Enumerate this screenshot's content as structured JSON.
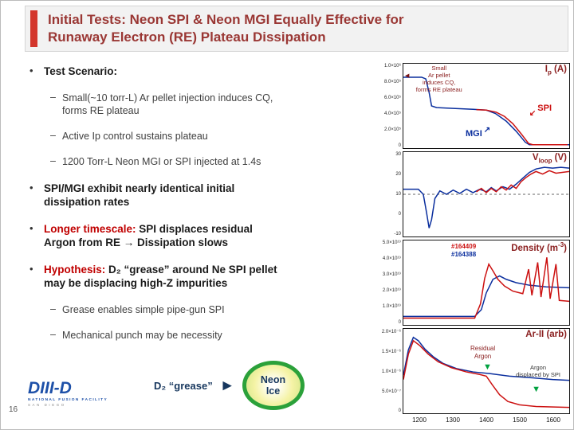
{
  "slide": {
    "title": "Initial Tests: Neon SPI & Neon MGI Equally Effective for\nRunaway Electron (RE) Plateau Dissipation",
    "page_number": "16"
  },
  "logo": {
    "wordmark": "DIII-D",
    "line1": "NATIONAL FUSION FACILITY",
    "line2": "SAN DIEGO"
  },
  "chars": {
    "bullet": "•",
    "dash": "–"
  },
  "icons": {
    "left_arrow": "◀",
    "down_left_arrow": "↙",
    "up_right_arrow": "↗",
    "down_arrow": "▼",
    "right_arrow": "►"
  },
  "colors": {
    "spi_red": "#cc1111",
    "mgi_blue": "#0b2f9e",
    "maroon": "#9a3734",
    "green": "#00a13f",
    "navy": "#17375e"
  },
  "bullets": {
    "test_scenario": "Test Scenario:",
    "sub_small_pellet": "Small(~10 torr-L) Ar pellet injection induces CQ,\nforms RE plateau",
    "sub_active_ip": "Active Ip control sustains plateau",
    "sub_injection": "1200 Torr-L Neon MGI or SPI injected at 1.4s",
    "spi_mgi": "SPI/MGI exhibit nearly identical initial\ndissipation rates",
    "longer_lead": "Longer timescale:",
    "longer_rest": " SPI displaces residual\nArgon from RE → Dissipation slows",
    "hypothesis_lead": "Hypothesis:",
    "hypothesis_rest": " D₂ “grease” around Ne SPI pellet\nmay be displacing high-Z impurities",
    "sub_grease": "Grease enables simple pipe-gun SPI",
    "sub_punch": "Mechanical punch may be necessity"
  },
  "grease_callout": {
    "label": "D₂ “grease”",
    "target": "Neon\nIce"
  },
  "chart_data": {
    "type": "line",
    "x_axis": {
      "ticks": [
        "1200",
        "1300",
        "1400",
        "1500",
        "1600"
      ]
    },
    "panels": [
      {
        "id": "plasma-current",
        "label": {
          "pre": "I",
          "sub": "p",
          "post": " (A)"
        },
        "yticks": [
          "1.0×10⁶",
          "8.0×10⁵",
          "6.0×10⁵",
          "4.0×10⁵",
          "2.0×10⁵",
          "0"
        ],
        "annotations": {
          "note": "Small\nAr pellet\ninduces CQ,\nforms RE plateau",
          "spi": "SPI",
          "mgi": "MGI"
        },
        "series": [
          {
            "name": "mgi-trace",
            "color": "#0b2f9e",
            "points": [
              [
                0,
                0.16
              ],
              [
                0.11,
                0.16
              ],
              [
                0.135,
                0.18
              ],
              [
                0.155,
                0.34
              ],
              [
                0.17,
                0.5
              ],
              [
                0.2,
                0.52
              ],
              [
                0.3,
                0.53
              ],
              [
                0.42,
                0.54
              ],
              [
                0.5,
                0.55
              ],
              [
                0.555,
                0.59
              ],
              [
                0.62,
                0.68
              ],
              [
                0.68,
                0.8
              ],
              [
                0.735,
                0.93
              ],
              [
                0.76,
                0.96
              ],
              [
                1,
                0.96
              ]
            ]
          },
          {
            "name": "spi-trace",
            "color": "#cc1111",
            "points": [
              [
                0.44,
                0.545
              ],
              [
                0.5,
                0.55
              ],
              [
                0.56,
                0.575
              ],
              [
                0.61,
                0.625
              ],
              [
                0.66,
                0.71
              ],
              [
                0.71,
                0.83
              ],
              [
                0.755,
                0.945
              ],
              [
                0.78,
                0.96
              ],
              [
                0.99,
                0.96
              ]
            ]
          }
        ]
      },
      {
        "id": "loop-voltage",
        "label": {
          "pre": "V",
          "sub": "loop",
          "post": " (V)"
        },
        "yticks": [
          "30",
          "20",
          "10",
          "0",
          "-10"
        ],
        "series": [
          {
            "name": "zero-line",
            "color": "#999999",
            "dash": true,
            "points": [
              [
                0,
                0.5
              ],
              [
                1,
                0.5
              ]
            ]
          },
          {
            "name": "mgi-trace",
            "color": "#0b2f9e",
            "points": [
              [
                0,
                0.44
              ],
              [
                0.09,
                0.44
              ],
              [
                0.12,
                0.5
              ],
              [
                0.14,
                0.72
              ],
              [
                0.155,
                0.9
              ],
              [
                0.17,
                0.8
              ],
              [
                0.19,
                0.55
              ],
              [
                0.22,
                0.46
              ],
              [
                0.26,
                0.5
              ],
              [
                0.3,
                0.45
              ],
              [
                0.34,
                0.49
              ],
              [
                0.38,
                0.44
              ],
              [
                0.42,
                0.48
              ],
              [
                0.46,
                0.44
              ],
              [
                0.5,
                0.47
              ],
              [
                0.53,
                0.42
              ],
              [
                0.56,
                0.46
              ],
              [
                0.6,
                0.41
              ],
              [
                0.64,
                0.44
              ],
              [
                0.68,
                0.38
              ],
              [
                0.72,
                0.31
              ],
              [
                0.76,
                0.24
              ],
              [
                0.8,
                0.2
              ],
              [
                0.85,
                0.18
              ],
              [
                0.9,
                0.19
              ],
              [
                0.95,
                0.18
              ],
              [
                1,
                0.19
              ]
            ]
          },
          {
            "name": "spi-trace",
            "color": "#cc1111",
            "points": [
              [
                0.44,
                0.47
              ],
              [
                0.47,
                0.43
              ],
              [
                0.5,
                0.48
              ],
              [
                0.53,
                0.43
              ],
              [
                0.56,
                0.47
              ],
              [
                0.59,
                0.41
              ],
              [
                0.62,
                0.45
              ],
              [
                0.65,
                0.39
              ],
              [
                0.68,
                0.43
              ],
              [
                0.71,
                0.35
              ],
              [
                0.74,
                0.3
              ],
              [
                0.77,
                0.26
              ],
              [
                0.8,
                0.23
              ],
              [
                0.84,
                0.26
              ],
              [
                0.88,
                0.22
              ],
              [
                0.92,
                0.25
              ],
              [
                1,
                0.23
              ]
            ]
          }
        ]
      },
      {
        "id": "density",
        "label": {
          "pre": "Density (m",
          "sup": "-3",
          "post": ")"
        },
        "yticks": [
          "5.0×10¹⁹",
          "4.0×10¹⁹",
          "3.0×10¹⁹",
          "2.0×10¹⁹",
          "1.0×10¹⁹",
          "0"
        ],
        "annotations": {
          "shot_spi": "#164409",
          "shot_mgi": "#164388"
        },
        "series": [
          {
            "name": "mgi-trace",
            "color": "#0b2f9e",
            "points": [
              [
                0,
                0.9
              ],
              [
                0.43,
                0.9
              ],
              [
                0.47,
                0.82
              ],
              [
                0.5,
                0.62
              ],
              [
                0.54,
                0.46
              ],
              [
                0.58,
                0.42
              ],
              [
                0.62,
                0.46
              ],
              [
                0.68,
                0.5
              ],
              [
                0.76,
                0.53
              ],
              [
                0.86,
                0.55
              ],
              [
                1,
                0.56
              ]
            ]
          },
          {
            "name": "spi-trace",
            "color": "#cc1111",
            "points": [
              [
                0,
                0.92
              ],
              [
                0.43,
                0.92
              ],
              [
                0.465,
                0.75
              ],
              [
                0.49,
                0.45
              ],
              [
                0.515,
                0.28
              ],
              [
                0.54,
                0.36
              ],
              [
                0.57,
                0.46
              ],
              [
                0.61,
                0.54
              ],
              [
                0.66,
                0.6
              ],
              [
                0.72,
                0.63
              ],
              [
                0.755,
                0.34
              ],
              [
                0.775,
                0.65
              ],
              [
                0.81,
                0.26
              ],
              [
                0.83,
                0.67
              ],
              [
                0.865,
                0.2
              ],
              [
                0.885,
                0.69
              ],
              [
                0.92,
                0.28
              ],
              [
                0.94,
                0.71
              ],
              [
                1,
                0.72
              ]
            ]
          }
        ]
      },
      {
        "id": "ar-ii",
        "label": {
          "pre": "Ar-II (arb)"
        },
        "yticks": [
          "2.0×10⁻⁶",
          "1.5×10⁻⁶",
          "1.0×10⁻⁶",
          "5.0×10⁻⁷",
          "0"
        ],
        "annotations": {
          "residual": "Residual\nArgon",
          "displaced": "Argon\ndisplaced by SPI"
        },
        "series": [
          {
            "name": "mgi-trace",
            "color": "#0b2f9e",
            "points": [
              [
                0,
                0.55
              ],
              [
                0.03,
                0.25
              ],
              [
                0.06,
                0.1
              ],
              [
                0.09,
                0.14
              ],
              [
                0.13,
                0.24
              ],
              [
                0.18,
                0.33
              ],
              [
                0.24,
                0.41
              ],
              [
                0.32,
                0.47
              ],
              [
                0.42,
                0.51
              ],
              [
                0.52,
                0.53
              ],
              [
                0.64,
                0.56
              ],
              [
                0.78,
                0.58
              ],
              [
                0.9,
                0.6
              ],
              [
                1,
                0.61
              ]
            ]
          },
          {
            "name": "spi-trace",
            "color": "#cc1111",
            "points": [
              [
                0,
                0.6
              ],
              [
                0.03,
                0.3
              ],
              [
                0.06,
                0.14
              ],
              [
                0.1,
                0.2
              ],
              [
                0.15,
                0.3
              ],
              [
                0.21,
                0.39
              ],
              [
                0.29,
                0.46
              ],
              [
                0.38,
                0.51
              ],
              [
                0.46,
                0.54
              ],
              [
                0.5,
                0.56
              ],
              [
                0.535,
                0.66
              ],
              [
                0.58,
                0.78
              ],
              [
                0.63,
                0.86
              ],
              [
                0.7,
                0.9
              ],
              [
                0.8,
                0.92
              ],
              [
                1,
                0.93
              ]
            ]
          }
        ]
      }
    ]
  }
}
